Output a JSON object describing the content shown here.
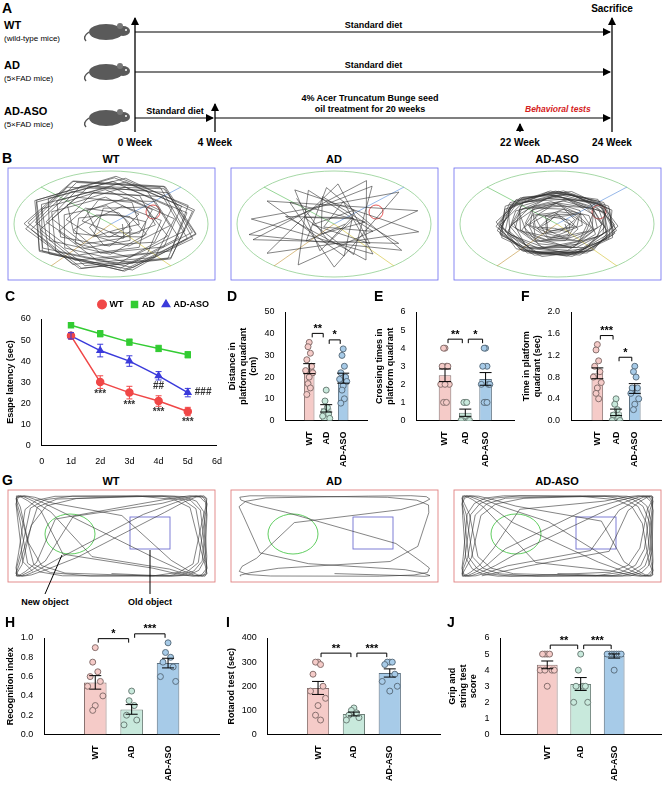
{
  "panels": {
    "A": {
      "letter": "A",
      "groups": [
        {
          "name": "WT",
          "subtitle": "(wild-type mice)"
        },
        {
          "name": "AD",
          "subtitle": "(5×FAD mice)"
        },
        {
          "name": "AD-ASO",
          "subtitle": "(5×FAD mice)"
        }
      ],
      "weeks": [
        "0 Week",
        "4 Week",
        "22 Week",
        "24 Week"
      ],
      "end_label": "Sacrifice",
      "rows": [
        [
          "Standard diet"
        ],
        [
          "Standard diet"
        ],
        [
          "Standard diet",
          "4% Acer Truncatum Bunge seed oil treatment for 20 weeks"
        ]
      ],
      "tests": "Behavioral tests"
    },
    "B": {
      "letter": "B",
      "titles": [
        "WT",
        "AD",
        "AD-ASO"
      ]
    },
    "G": {
      "letter": "G",
      "titles": [
        "WT",
        "AD",
        "AD-ASO"
      ],
      "labels": [
        "New object",
        "Old object"
      ]
    }
  },
  "chart_data": [
    {
      "panel": "C",
      "type": "line",
      "x": [
        1,
        2,
        3,
        4,
        5
      ],
      "xlim": [
        0,
        6
      ],
      "xticks": [
        0,
        {
          "value": 1,
          "label": "1d"
        },
        {
          "value": 2,
          "label": "2d"
        },
        {
          "value": 3,
          "label": "3d"
        },
        {
          "value": 4,
          "label": "4d"
        },
        {
          "value": 5,
          "label": "5d"
        },
        {
          "value": 6,
          "label": "6d"
        }
      ],
      "ylim": [
        0,
        60
      ],
      "yticks": [
        0,
        10,
        20,
        30,
        40,
        50,
        60
      ],
      "y_label": "Esape latency (sec)",
      "legend": "top",
      "grid": false,
      "series": [
        {
          "name": "WT",
          "color": "#f04747",
          "marker": "circle",
          "values": [
            52,
            30,
            25,
            21,
            16
          ],
          "errors": [
            1.5,
            3,
            3,
            2.5,
            2
          ]
        },
        {
          "name": "AD",
          "color": "#33cc33",
          "marker": "square",
          "values": [
            57,
            53,
            49,
            46,
            43
          ],
          "errors": [
            1,
            1.5,
            1.5,
            1.5,
            1.5
          ]
        },
        {
          "name": "AD-ASO",
          "color": "#3b3bdb",
          "marker": "triangle",
          "values": [
            52,
            45,
            40,
            33,
            25
          ],
          "errors": [
            1.5,
            3,
            2.5,
            2,
            2
          ]
        }
      ],
      "annotations": [
        {
          "series": "WT",
          "x": 2,
          "text": "***",
          "position": "below"
        },
        {
          "series": "WT",
          "x": 3,
          "text": "***",
          "position": "below"
        },
        {
          "series": "WT",
          "x": 4,
          "text": "***",
          "position": "below"
        },
        {
          "series": "WT",
          "x": 5,
          "text": "***",
          "position": "below"
        },
        {
          "series": "AD-ASO",
          "x": 4,
          "text": "##",
          "position": "below"
        },
        {
          "series": "AD-ASO",
          "x": 5,
          "text": "###",
          "position": "right"
        }
      ]
    },
    {
      "panel": "D",
      "type": "bar",
      "categories": [
        "WT",
        "AD",
        "AD-ASO"
      ],
      "colors": [
        "#f5cbc8",
        "#c8e9dc",
        "#a7cbe8"
      ],
      "values": [
        23.9,
        5.6,
        19.5
      ],
      "errors": [
        2.3,
        1.7,
        2.3
      ],
      "points": [
        [
          36,
          34,
          31,
          28,
          25,
          23,
          22,
          20,
          17,
          15,
          12
        ],
        [
          14,
          9,
          6,
          4,
          3,
          2,
          1
        ],
        [
          33,
          30,
          25,
          22,
          20,
          19,
          18,
          16,
          14,
          10,
          8
        ]
      ],
      "ylim": [
        0,
        50
      ],
      "yticks": [
        0,
        10,
        20,
        30,
        40,
        50
      ],
      "y_label": "Distance in platform quadrant (cm)",
      "grid": false,
      "annotations": [
        {
          "from": "WT",
          "to": "AD",
          "text": "**"
        },
        {
          "from": "AD",
          "to": "AD-ASO",
          "text": "*"
        }
      ]
    },
    {
      "panel": "E",
      "type": "bar",
      "categories": [
        "WT",
        "AD",
        "AD-ASO"
      ],
      "colors": [
        "#f5cbc8",
        "#c8e9dc",
        "#a7cbe8"
      ],
      "values": [
        2.5,
        0.43,
        2.3
      ],
      "errors": [
        0.35,
        0.2,
        0.35
      ],
      "points": [
        [
          4,
          4,
          3,
          3,
          3,
          2,
          2,
          2,
          1,
          1
        ],
        [
          1,
          1,
          1,
          0,
          0,
          0,
          0
        ],
        [
          4,
          4,
          3,
          3,
          2,
          2,
          2,
          1,
          1,
          1
        ]
      ],
      "ylim": [
        0,
        6
      ],
      "yticks": [
        0,
        1,
        2,
        3,
        4,
        5,
        6
      ],
      "y_label": "Crossing times in platform quadrant",
      "grid": false,
      "annotations": [
        {
          "from": "WT",
          "to": "AD",
          "text": "**"
        },
        {
          "from": "AD",
          "to": "AD-ASO",
          "text": "*"
        }
      ]
    },
    {
      "panel": "F",
      "type": "bar",
      "categories": [
        "WT",
        "AD",
        "AD-ASO"
      ],
      "colors": [
        "#f5cbc8",
        "#c8e9dc",
        "#a7cbe8"
      ],
      "values": [
        0.87,
        0.15,
        0.59
      ],
      "errors": [
        0.1,
        0.06,
        0.09
      ],
      "points": [
        [
          1.4,
          1.3,
          1.1,
          1.0,
          0.9,
          0.8,
          0.7,
          0.6,
          0.5,
          0.4
        ],
        [
          0.4,
          0.3,
          0.2,
          0.1,
          0.05,
          0,
          0
        ],
        [
          1.0,
          0.9,
          0.8,
          0.6,
          0.6,
          0.5,
          0.4,
          0.3,
          0.2
        ]
      ],
      "ylim": [
        0,
        2
      ],
      "yticks": [
        {
          "value": 0,
          "label": "0.0"
        },
        0.4,
        0.8,
        1.2,
        1.6,
        {
          "value": 2,
          "label": "2.0"
        }
      ],
      "y_label": "Time in platform quadrant (sec)",
      "grid": false,
      "annotations": [
        {
          "from": "WT",
          "to": "AD",
          "text": "***"
        },
        {
          "from": "AD",
          "to": "AD-ASO",
          "text": "*"
        }
      ]
    },
    {
      "panel": "H",
      "type": "bar",
      "categories": [
        "WT",
        "AD",
        "AD-ASO"
      ],
      "colors": [
        "#f5cbc8",
        "#c8e9dc",
        "#a7cbe8"
      ],
      "values": [
        0.54,
        0.26,
        0.74
      ],
      "errors": [
        0.07,
        0.05,
        0.05
      ],
      "points": [
        [
          0.9,
          0.75,
          0.65,
          0.6,
          0.55,
          0.5,
          0.4,
          0.3,
          0.25
        ],
        [
          0.45,
          0.35,
          0.3,
          0.2,
          0.15,
          0.1
        ],
        [
          0.95,
          0.85,
          0.8,
          0.75,
          0.7,
          0.6,
          0.55
        ]
      ],
      "ylim": [
        0,
        1
      ],
      "yticks": [
        {
          "value": 0,
          "label": "0.0"
        },
        0.2,
        0.4,
        0.6,
        0.8,
        {
          "value": 1,
          "label": "1.0"
        }
      ],
      "y_label": "Recognition index",
      "grid": false,
      "annotations": [
        {
          "from": "WT",
          "to": "AD",
          "text": "*"
        },
        {
          "from": "AD",
          "to": "AD-ASO",
          "text": "***"
        }
      ]
    },
    {
      "panel": "I",
      "type": "bar",
      "categories": [
        "WT",
        "AD",
        "AD-ASO"
      ],
      "colors": [
        "#f5cbc8",
        "#c8e9dc",
        "#a7cbe8"
      ],
      "values": [
        193,
        85,
        255
      ],
      "errors": [
        27,
        8,
        17
      ],
      "points": [
        [
          300,
          300,
          290,
          250,
          200,
          180,
          150,
          120,
          80,
          60
        ],
        [
          110,
          100,
          90,
          80,
          70,
          60
        ],
        [
          300,
          300,
          300,
          290,
          250,
          220,
          200,
          180
        ]
      ],
      "ylim": [
        0,
        400
      ],
      "yticks": [
        0,
        100,
        200,
        300,
        400
      ],
      "y_label": "Rotarod test (sec)",
      "grid": false,
      "annotations": [
        {
          "from": "WT",
          "to": "AD",
          "text": "**"
        },
        {
          "from": "AD",
          "to": "AD-ASO",
          "text": "***"
        }
      ]
    },
    {
      "panel": "J",
      "type": "bar",
      "categories": [
        "WT",
        "AD",
        "AD-ASO"
      ],
      "colors": [
        "#f5cbc8",
        "#c8e9dc",
        "#a7cbe8"
      ],
      "values": [
        4.33,
        3.14,
        4.88
      ],
      "errors": [
        0.24,
        0.4,
        0.13
      ],
      "points": [
        [
          5,
          5,
          5,
          5,
          4,
          4,
          4,
          3,
          4
        ],
        [
          5,
          4,
          3,
          3,
          3,
          2,
          2
        ],
        [
          5,
          5,
          5,
          5,
          5,
          5,
          5,
          4
        ]
      ],
      "ylim": [
        0,
        6
      ],
      "yticks": [
        0,
        1,
        2,
        3,
        4,
        5,
        6
      ],
      "y_label": "Grip and string test score",
      "grid": false,
      "annotations": [
        {
          "from": "WT",
          "to": "AD",
          "text": "**"
        },
        {
          "from": "AD",
          "to": "AD-ASO",
          "text": "***"
        }
      ]
    }
  ]
}
